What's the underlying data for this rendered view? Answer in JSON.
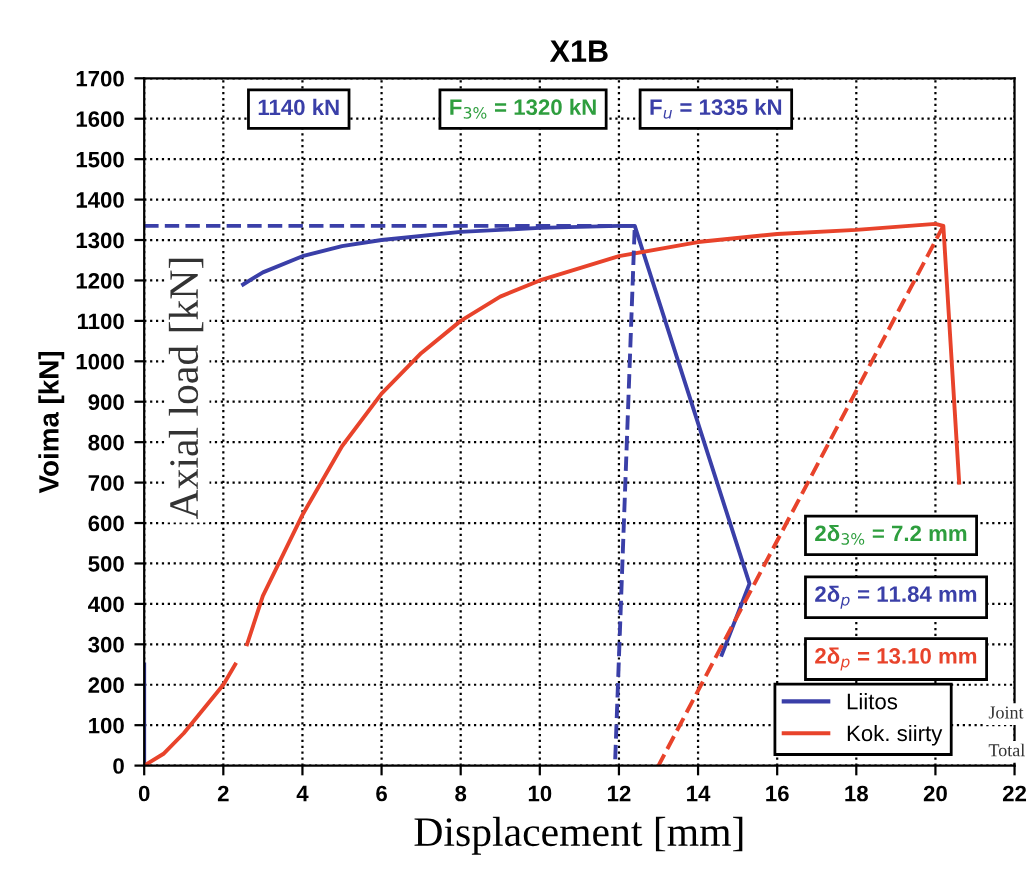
{
  "chart_data": {
    "type": "line",
    "title": "X1B",
    "xlabel": "Displacement [mm]",
    "ylabel": "Voima [kN]",
    "xlim": [
      0,
      22
    ],
    "ylim": [
      0,
      1700
    ],
    "xticks": [
      0,
      2,
      4,
      6,
      8,
      10,
      12,
      14,
      16,
      18,
      20,
      22
    ],
    "yticks": [
      0,
      100,
      200,
      300,
      400,
      500,
      600,
      700,
      800,
      900,
      1000,
      1100,
      1200,
      1300,
      1400,
      1500,
      1600,
      1700
    ],
    "grid": true,
    "legend": "bottom right",
    "marker": "none",
    "series": [
      {
        "name": "Liitos",
        "color": "#3a3fa8",
        "x": [
          0,
          0,
          1,
          2.5,
          3,
          4,
          5,
          6,
          8,
          10,
          12,
          12.4,
          15.3,
          14.6
        ],
        "values": [
          0,
          250,
          null,
          1190,
          1220,
          1260,
          1285,
          1300,
          1320,
          1330,
          1335,
          1335,
          450,
          274
        ]
      },
      {
        "name": "Kok. siirty",
        "color": "#e8432b",
        "x": [
          0,
          0.5,
          1,
          1.5,
          2,
          2.3,
          2.45,
          2.6,
          3,
          4,
          5,
          6,
          7,
          8,
          9,
          10,
          12,
          14,
          16,
          18,
          20,
          20.2,
          20.6
        ],
        "values": [
          0,
          30,
          80,
          140,
          200,
          250,
          null,
          300,
          420,
          620,
          790,
          920,
          1020,
          1100,
          1160,
          1200,
          1260,
          1295,
          1315,
          1325,
          1340,
          1335,
          700
        ]
      },
      {
        "color": "#3a3fa8",
        "line_style": "dashed",
        "x": [
          0,
          12.4,
          11.9
        ],
        "values": [
          1335,
          1335,
          0
        ]
      },
      {
        "color": "#e8432b",
        "line_style": "dashed",
        "x": [
          20.2,
          13.0
        ],
        "values": [
          1335,
          0
        ]
      }
    ],
    "annotations": [
      "1140 kN",
      "F$_{3%}$ = 1320 kN",
      "F$_{u}$ = 1335 kN",
      "2δ$_{3%}$ = 7.2 mm",
      "2δ$_{p}$ = 11.84 mm",
      "2δ$_{p}$ = 13.10 mm",
      "Axial load [kN]",
      "Joint",
      "Total"
    ]
  }
}
